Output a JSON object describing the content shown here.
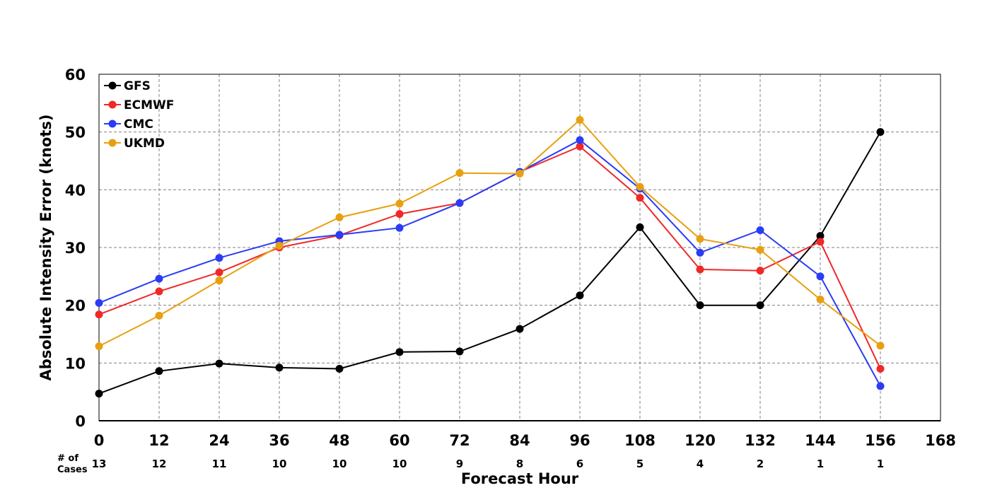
{
  "chart_data": {
    "type": "line",
    "title": "",
    "xlabel": "Forecast Hour",
    "ylabel": "Absolute Intensity Error (knots)",
    "xlim": [
      0,
      168
    ],
    "ylim": [
      0,
      60
    ],
    "x_ticks": [
      0,
      12,
      24,
      36,
      48,
      60,
      72,
      84,
      96,
      108,
      120,
      132,
      144,
      156,
      168
    ],
    "y_ticks": [
      0,
      10,
      20,
      30,
      40,
      50,
      60
    ],
    "grid": true,
    "legend_position": "top-left",
    "x": [
      0,
      12,
      24,
      36,
      48,
      60,
      72,
      84,
      96,
      108,
      120,
      132,
      144,
      156
    ],
    "series": [
      {
        "name": "GFS",
        "color": "#000000",
        "values": [
          4.7,
          8.6,
          9.9,
          9.2,
          9.0,
          11.9,
          12.0,
          15.9,
          21.7,
          33.5,
          20.0,
          20.0,
          32.0,
          50.0
        ]
      },
      {
        "name": "ECMWF",
        "color": "#f02828",
        "values": [
          18.4,
          22.4,
          25.7,
          30.0,
          32.1,
          35.8,
          37.7,
          43.1,
          47.5,
          38.6,
          26.2,
          26.0,
          31.0,
          9.0
        ]
      },
      {
        "name": "CMC",
        "color": "#2a3cf5",
        "values": [
          20.4,
          24.6,
          28.2,
          31.1,
          32.2,
          33.4,
          37.7,
          43.1,
          48.6,
          40.2,
          29.1,
          33.0,
          25.0,
          6.0
        ]
      },
      {
        "name": "UKMD",
        "color": "#e8a010",
        "values": [
          12.9,
          18.2,
          24.3,
          30.3,
          35.2,
          37.6,
          42.9,
          42.8,
          52.1,
          40.5,
          31.5,
          29.6,
          21.0,
          13.0
        ]
      }
    ],
    "cases_label": "# of Cases",
    "cases_label_lines": [
      "# of",
      "Cases"
    ],
    "cases": [
      "13",
      "12",
      "11",
      "10",
      "10",
      "10",
      "9",
      "8",
      "6",
      "5",
      "4",
      "2",
      "1",
      "1"
    ]
  }
}
